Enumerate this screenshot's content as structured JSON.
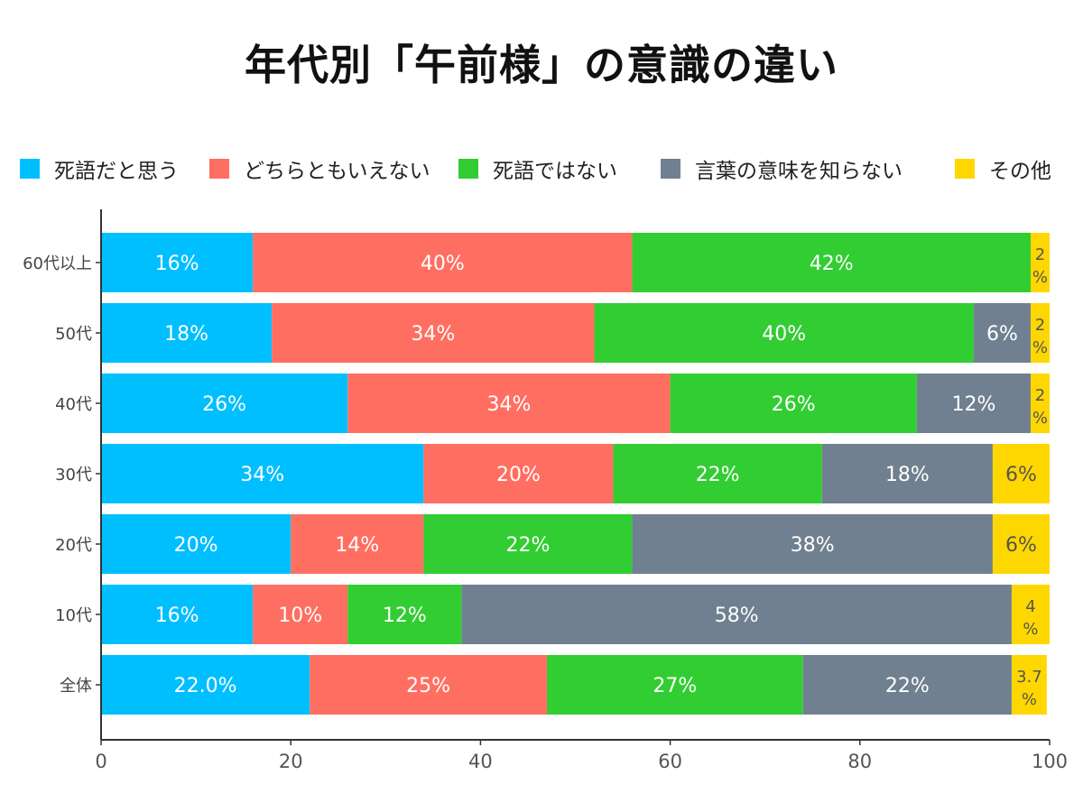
{
  "title": "年代別「午前様」の意識の違い",
  "legend": [
    {
      "label": "死語だと思う",
      "color": "#00BFFF"
    },
    {
      "label": "どちらともいえない",
      "color": "#FF6F61"
    },
    {
      "label": "死語ではない",
      "color": "#32CD32"
    },
    {
      "label": "言葉の意味を知らない",
      "color": "#708090"
    },
    {
      "label": "その他",
      "color": "#FFD700"
    }
  ],
  "chart_data": {
    "type": "bar",
    "orientation": "horizontal",
    "stacked": true,
    "title": "年代別「午前様」の意識の違い",
    "xlabel": "",
    "ylabel": "",
    "xlim": [
      0,
      100
    ],
    "xticks": [
      "0",
      "20",
      "40",
      "60",
      "80",
      "100"
    ],
    "legend_position": "top",
    "categories": [
      "60代以上",
      "50代",
      "40代",
      "30代",
      "20代",
      "10代",
      "全体"
    ],
    "series": [
      {
        "name": "死語だと思う",
        "color": "#00BFFF",
        "values": [
          16,
          18,
          26,
          34,
          20,
          16,
          22.0
        ],
        "labels": [
          "16%",
          "18%",
          "26%",
          "34%",
          "20%",
          "16%",
          "22.0%"
        ]
      },
      {
        "name": "どちらともいえない",
        "color": "#FF6F61",
        "values": [
          40,
          34,
          34,
          20,
          14,
          10,
          25
        ],
        "labels": [
          "40%",
          "34%",
          "34%",
          "20%",
          "14%",
          "10%",
          "25%"
        ]
      },
      {
        "name": "死語ではない",
        "color": "#32CD32",
        "values": [
          42,
          40,
          26,
          22,
          22,
          12,
          27
        ],
        "labels": [
          "42%",
          "40%",
          "26%",
          "22%",
          "22%",
          "12%",
          "27%"
        ]
      },
      {
        "name": "言葉の意味を知らない",
        "color": "#708090",
        "values": [
          0,
          6,
          12,
          18,
          38,
          58,
          22
        ],
        "labels": [
          "",
          "6%",
          "12%",
          "18%",
          "38%",
          "58%",
          "22%"
        ]
      },
      {
        "name": "その他",
        "color": "#FFD700",
        "values": [
          2,
          2,
          2,
          6,
          6,
          4,
          3.7
        ],
        "labels": [
          "2%",
          "2%",
          "2%",
          "6%",
          "6%",
          "4%",
          "3.7%"
        ]
      }
    ]
  }
}
